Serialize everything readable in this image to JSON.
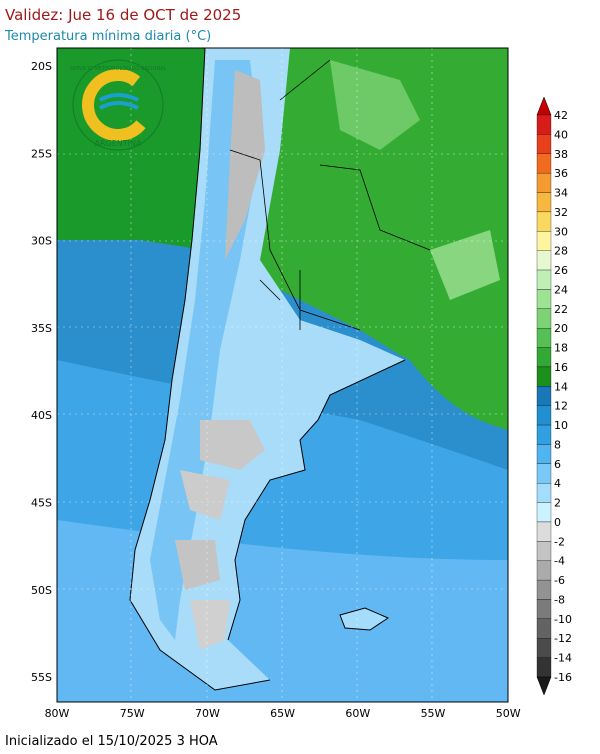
{
  "header": {
    "title": "Validez: Jue 16 de OCT de 2025",
    "subtitle": "Temperatura mínima diaria (°C)"
  },
  "logo": {
    "top_text": "SERVICIO METEOROLÓGICO NACIONAL",
    "bottom_text": "ARGENTINA"
  },
  "map": {
    "lat_labels": [
      "20S",
      "25S",
      "30S",
      "35S",
      "40S",
      "45S",
      "50S",
      "55S"
    ],
    "lon_labels": [
      "80W",
      "75W",
      "70W",
      "65W",
      "60W",
      "55W",
      "50W"
    ]
  },
  "colorbar": {
    "ticks": [
      42,
      40,
      38,
      36,
      34,
      32,
      30,
      28,
      26,
      24,
      22,
      20,
      18,
      16,
      14,
      12,
      10,
      8,
      6,
      4,
      2,
      0,
      -2,
      -4,
      -6,
      -8,
      -10,
      -12,
      -14,
      -16
    ],
    "colors": [
      "#c40000",
      "#d81c1c",
      "#e8401c",
      "#f06a20",
      "#f59a30",
      "#f8b840",
      "#fad860",
      "#fdf5a0",
      "#e6f8d0",
      "#c0eeb4",
      "#9ee294",
      "#7cd274",
      "#56c056",
      "#34a834",
      "#1a901a",
      "#1878b8",
      "#2090d0",
      "#30a0e0",
      "#50b4f0",
      "#78c8f8",
      "#a4dcfc",
      "#ccf2ff",
      "#dcdcdc",
      "#c4c4c4",
      "#ababab",
      "#939393",
      "#7b7b7b",
      "#636363",
      "#4b4b4b",
      "#333333",
      "#1a1a1a"
    ]
  },
  "footer": {
    "text": "Inicializado el 15/10/2025 3 HOA"
  }
}
